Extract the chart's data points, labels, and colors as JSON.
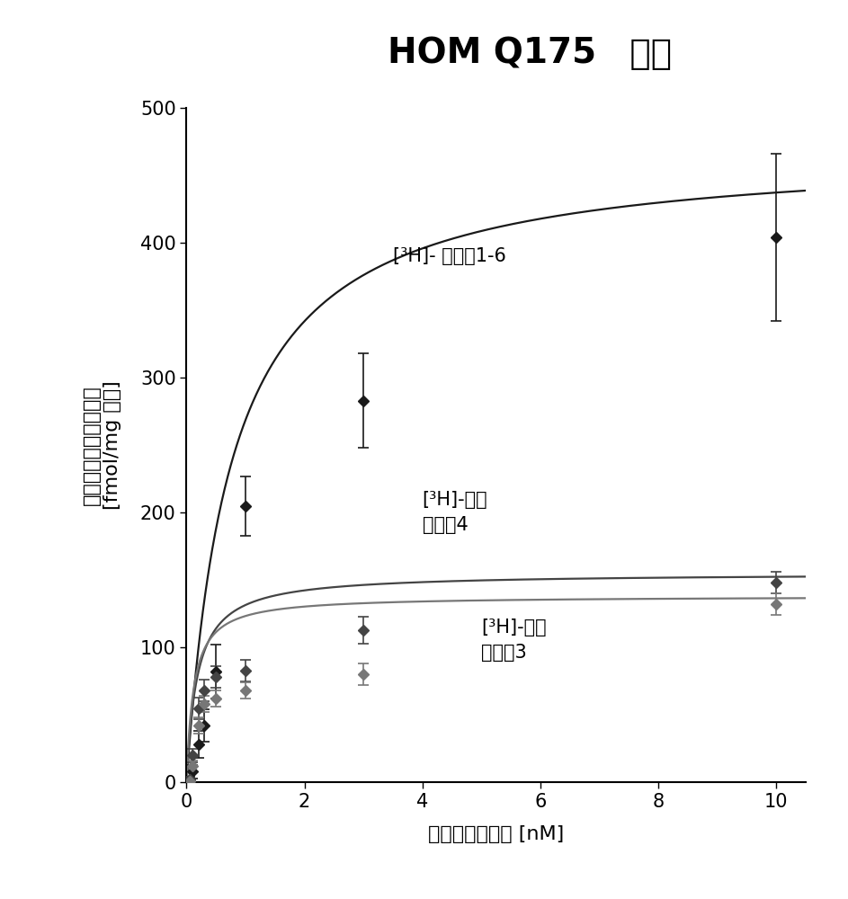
{
  "title_bold": "HOM Q175",
  "title_chinese": " 皮层",
  "xlabel": "放射性配体浓度 [nM]",
  "ylabel_top": "特异性放射性配体结合",
  "ylabel_bottom": "[fmol/mg 组织]",
  "xlim": [
    0,
    10.5
  ],
  "ylim": [
    0,
    500
  ],
  "xticks": [
    0,
    2,
    4,
    6,
    8,
    10
  ],
  "yticks": [
    0,
    100,
    200,
    300,
    400,
    500
  ],
  "curve1_Bmax": 470,
  "curve1_Kd": 0.75,
  "curve1_color": "#1a1a1a",
  "curve1_data_x": [
    0.05,
    0.1,
    0.2,
    0.3,
    0.5,
    1.0,
    3.0,
    10.0
  ],
  "curve1_data_y": [
    2,
    8,
    28,
    42,
    82,
    205,
    283,
    404
  ],
  "curve1_err": [
    2,
    5,
    10,
    12,
    20,
    22,
    35,
    62
  ],
  "curve1_ann_x": 3.5,
  "curve1_ann_y": 390,
  "curve1_ann": "[³H]- 化合物1-6",
  "curve2_Bmax": 155,
  "curve2_Kd": 0.18,
  "curve2_color": "#444444",
  "curve2_data_x": [
    0.05,
    0.1,
    0.2,
    0.3,
    0.5,
    1.0,
    3.0,
    10.0
  ],
  "curve2_data_y": [
    2,
    20,
    55,
    68,
    78,
    83,
    113,
    148
  ],
  "curve2_err": [
    2,
    5,
    8,
    8,
    8,
    8,
    10,
    8
  ],
  "curve2_ann_x": 4.0,
  "curve2_ann_y": 200,
  "curve2_ann": "[³H]-比较\n化合物4",
  "curve3_Bmax": 138,
  "curve3_Kd": 0.12,
  "curve3_color": "#777777",
  "curve3_data_x": [
    0.05,
    0.1,
    0.2,
    0.3,
    0.5,
    1.0,
    3.0,
    10.0
  ],
  "curve3_data_y": [
    1,
    12,
    42,
    58,
    62,
    68,
    80,
    132
  ],
  "curve3_err": [
    1,
    4,
    6,
    6,
    6,
    6,
    8,
    8
  ],
  "curve3_ann_x": 5.0,
  "curve3_ann_y": 105,
  "curve3_ann": "[³H]-比较\n化合物3",
  "background_color": "#ffffff",
  "text_color": "#000000",
  "title_fontsize": 28,
  "axis_label_fontsize": 16,
  "tick_fontsize": 15,
  "annotation_fontsize": 15
}
